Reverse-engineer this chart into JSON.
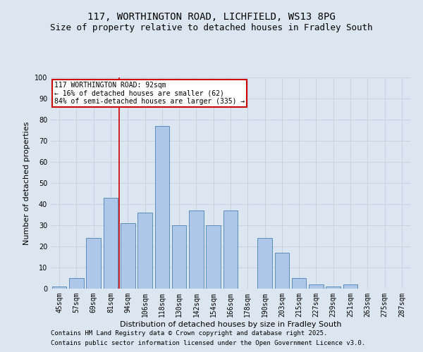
{
  "title_line1": "117, WORTHINGTON ROAD, LICHFIELD, WS13 8PG",
  "title_line2": "Size of property relative to detached houses in Fradley South",
  "xlabel": "Distribution of detached houses by size in Fradley South",
  "ylabel": "Number of detached properties",
  "categories": [
    "45sqm",
    "57sqm",
    "69sqm",
    "81sqm",
    "94sqm",
    "106sqm",
    "118sqm",
    "130sqm",
    "142sqm",
    "154sqm",
    "166sqm",
    "178sqm",
    "190sqm",
    "203sqm",
    "215sqm",
    "227sqm",
    "239sqm",
    "251sqm",
    "263sqm",
    "275sqm",
    "287sqm"
  ],
  "values": [
    1,
    5,
    24,
    43,
    31,
    36,
    77,
    30,
    37,
    30,
    37,
    0,
    24,
    17,
    5,
    2,
    1,
    2,
    0,
    0,
    0
  ],
  "bar_color": "#aec6e8",
  "bar_edgecolor": "#5b8db8",
  "vline_color": "#cc0000",
  "vline_x": 3.5,
  "annotation_text": "117 WORTHINGTON ROAD: 92sqm\n← 16% of detached houses are smaller (62)\n84% of semi-detached houses are larger (335) →",
  "annotation_box_facecolor": "#ffffff",
  "annotation_box_edgecolor": "#cc0000",
  "ylim": [
    0,
    100
  ],
  "yticks": [
    0,
    10,
    20,
    30,
    40,
    50,
    60,
    70,
    80,
    90,
    100
  ],
  "grid_color": "#c8d4e3",
  "background_color": "#dce6f0",
  "footer_line1": "Contains HM Land Registry data © Crown copyright and database right 2025.",
  "footer_line2": "Contains public sector information licensed under the Open Government Licence v3.0.",
  "title_fontsize": 10,
  "subtitle_fontsize": 9,
  "axis_label_fontsize": 8,
  "tick_fontsize": 7,
  "annotation_fontsize": 7,
  "footer_fontsize": 6.5,
  "ylabel_fontsize": 8
}
